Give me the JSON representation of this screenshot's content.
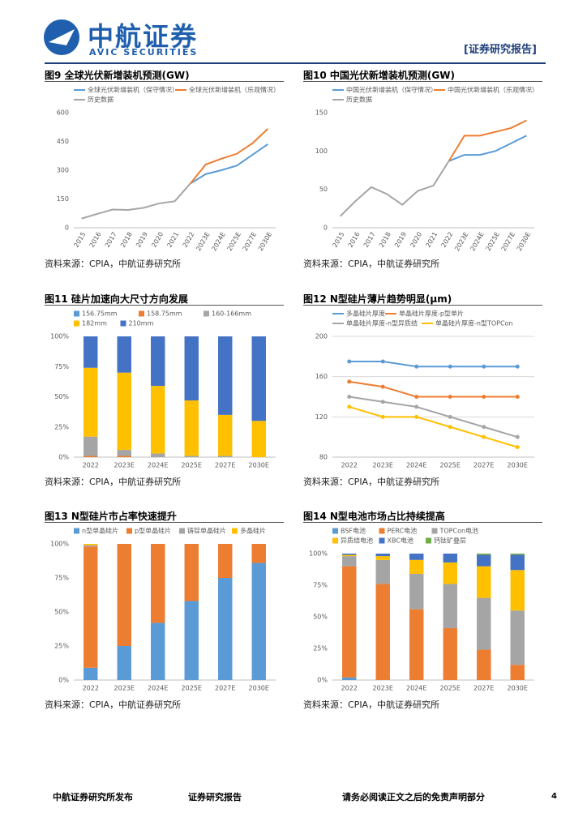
{
  "header": {
    "logo_cn": "中航证券",
    "logo_en": "AVIC SECURITIES",
    "report_type": "[证券研究报告]"
  },
  "chart_data": [
    {
      "type": "line",
      "figure_title": "图9 全球光伏新增装机预测(GW)",
      "categories": [
        "2015",
        "2016",
        "2017",
        "2018",
        "2019",
        "2020",
        "2021",
        "2022",
        "2023E",
        "2024E",
        "2025E",
        "2027E",
        "2030E"
      ],
      "series": [
        {
          "name": "全球光伏新增装机（保守情况）",
          "color": "#5b9bd5",
          "values": [
            null,
            null,
            null,
            null,
            null,
            null,
            null,
            230,
            280,
            300,
            324,
            380,
            436
          ]
        },
        {
          "name": "全球光伏新增装机（乐观情况）",
          "color": "#ed7d31",
          "values": [
            null,
            null,
            null,
            null,
            null,
            null,
            null,
            230,
            330,
            360,
            386,
            440,
            516
          ]
        },
        {
          "name": "历史数据",
          "color": "#a5a5a5",
          "values": [
            48,
            72,
            95,
            93,
            104,
            127,
            138,
            230,
            null,
            null,
            null,
            null,
            null
          ]
        }
      ],
      "ylim": [
        0,
        600
      ],
      "yticks": [
        0,
        150,
        300,
        450,
        600
      ],
      "grid": false,
      "markers": false,
      "source": "资料来源：CPIA，中航证券研究所"
    },
    {
      "type": "line",
      "figure_title": "图10 中国光伏新增装机预测(GW)",
      "categories": [
        "2015",
        "2016",
        "2017",
        "2018",
        "2019",
        "2020",
        "2021",
        "2022",
        "2023E",
        "2024E",
        "2025E",
        "2027E",
        "2030E"
      ],
      "series": [
        {
          "name": "中国光伏新增装机（保守情况）",
          "color": "#5b9bd5",
          "values": [
            null,
            null,
            null,
            null,
            null,
            null,
            null,
            87,
            95,
            95,
            100,
            110,
            120
          ]
        },
        {
          "name": "中国光伏新增装机（乐观情况）",
          "color": "#ed7d31",
          "values": [
            null,
            null,
            null,
            null,
            null,
            null,
            null,
            87,
            120,
            120,
            125,
            130,
            140
          ]
        },
        {
          "name": "历史数据",
          "color": "#a5a5a5",
          "values": [
            15,
            35,
            53,
            44,
            30,
            48,
            55,
            87,
            null,
            null,
            null,
            null,
            null
          ]
        }
      ],
      "ylim": [
        0,
        150
      ],
      "yticks": [
        0,
        50,
        100,
        150
      ],
      "grid": false,
      "markers": false,
      "source": "资料来源：CPIA，中航证券研究所"
    },
    {
      "type": "bar",
      "stacked": true,
      "figure_title": "图11 硅片加速向大尺寸方向发展",
      "categories": [
        "2022",
        "2023E",
        "2024E",
        "2025E",
        "2027E",
        "2030E"
      ],
      "series": [
        {
          "name": "156.75mm",
          "color": "#5b9bd5",
          "values": [
            0,
            0,
            0,
            0,
            0,
            0
          ]
        },
        {
          "name": "158.75mm",
          "color": "#ed7d31",
          "values": [
            1,
            1,
            0,
            0,
            0,
            0
          ]
        },
        {
          "name": "160-166mm",
          "color": "#a5a5a5",
          "values": [
            16,
            5,
            3,
            1,
            1,
            0
          ]
        },
        {
          "name": "182mm",
          "color": "#ffc000",
          "values": [
            57,
            64,
            56,
            46,
            34,
            30
          ]
        },
        {
          "name": "210mm",
          "color": "#4472c4",
          "values": [
            26,
            30,
            41,
            53,
            65,
            70
          ]
        }
      ],
      "ylim": [
        0,
        100
      ],
      "yticks": [
        {
          "value": 0,
          "label": "0%"
        },
        {
          "value": 25,
          "label": "25%"
        },
        {
          "value": 50,
          "label": "50%"
        },
        {
          "value": 75,
          "label": "75%"
        },
        {
          "value": 100,
          "label": "100%"
        }
      ],
      "grid": false,
      "source": "资料来源：CPIA，中航证券研究所"
    },
    {
      "type": "line",
      "figure_title": "图12 N型硅片薄片趋势明显(μm)",
      "categories": [
        "2022",
        "2023E",
        "2024E",
        "2025E",
        "2027E",
        "2030E"
      ],
      "series": [
        {
          "name": "多晶硅片厚度",
          "color": "#5b9bd5",
          "values": [
            175,
            175,
            170,
            170,
            170,
            170
          ]
        },
        {
          "name": "单晶硅片厚度-p型单片",
          "color": "#ed7d31",
          "values": [
            155,
            150,
            140,
            140,
            140,
            140
          ]
        },
        {
          "name": "单晶硅片厚度-n型异质结",
          "color": "#a5a5a5",
          "values": [
            140,
            135,
            130,
            120,
            110,
            100
          ]
        },
        {
          "name": "单晶硅片厚度-n型TOPCon",
          "color": "#ffc000",
          "values": [
            130,
            120,
            120,
            110,
            100,
            90
          ]
        }
      ],
      "ylim": [
        80,
        200
      ],
      "yticks": [
        80,
        120,
        160,
        200
      ],
      "grid": true,
      "markers": true,
      "source": "资料来源：CPIA，中航证券研究所"
    },
    {
      "type": "bar",
      "stacked": true,
      "figure_title": "图13 N型硅片市占率快速提升",
      "categories": [
        "2022",
        "2023E",
        "2024E",
        "2025E",
        "2027E",
        "2030E"
      ],
      "series": [
        {
          "name": "n型单晶硅片",
          "color": "#5b9bd5",
          "values": [
            9,
            25,
            42,
            58,
            75,
            86
          ]
        },
        {
          "name": "p型单晶硅片",
          "color": "#ed7d31",
          "values": [
            89,
            75,
            58,
            42,
            25,
            14
          ]
        },
        {
          "name": "铸锭单晶硅片",
          "color": "#a5a5a5",
          "values": [
            1,
            0,
            0,
            0,
            0,
            0
          ]
        },
        {
          "name": "多晶硅片",
          "color": "#ffc000",
          "values": [
            1,
            0,
            0,
            0,
            0,
            0
          ]
        }
      ],
      "ylim": [
        0,
        100
      ],
      "yticks": [
        {
          "value": 0,
          "label": "0%"
        },
        {
          "value": 25,
          "label": "25%"
        },
        {
          "value": 50,
          "label": "50%"
        },
        {
          "value": 75,
          "label": "75%"
        },
        {
          "value": 100,
          "label": "100%"
        }
      ],
      "grid": false,
      "source": "资料来源：CPIA，中航证券研究所"
    },
    {
      "type": "bar",
      "stacked": true,
      "figure_title": "图14 N型电池市场占比持续提高",
      "categories": [
        "2022",
        "2023E",
        "2024E",
        "2025E",
        "2027E",
        "2030E"
      ],
      "series": [
        {
          "name": "BSF电池",
          "color": "#5b9bd5",
          "values": [
            2,
            0,
            0,
            0,
            0,
            0
          ]
        },
        {
          "name": "PERC电池",
          "color": "#ed7d31",
          "values": [
            88,
            76,
            56,
            41,
            24,
            12
          ]
        },
        {
          "name": "TOPCon电池",
          "color": "#a5a5a5",
          "values": [
            8,
            19,
            28,
            35,
            41,
            43
          ]
        },
        {
          "name": "异质结电池",
          "color": "#ffc000",
          "values": [
            1,
            3,
            11,
            17,
            25,
            32
          ]
        },
        {
          "name": "XBC电池",
          "color": "#4472c4",
          "values": [
            1,
            2,
            5,
            7,
            9,
            12
          ]
        },
        {
          "name": "钙钛矿叠层",
          "color": "#70ad47",
          "values": [
            0,
            0,
            0,
            0,
            1,
            1
          ]
        }
      ],
      "ylim": [
        0,
        100
      ],
      "yticks": [
        {
          "value": 0,
          "label": "0%"
        },
        {
          "value": 25,
          "label": "25%"
        },
        {
          "value": 50,
          "label": "50%"
        },
        {
          "value": 75,
          "label": "75%"
        },
        {
          "value": 100,
          "label": "100%"
        }
      ],
      "grid": false,
      "source": "资料来源：CPIA，中航证券研究所"
    }
  ],
  "footer": {
    "publisher": "中航证券研究所发布",
    "report_type": "证券研究报告",
    "disclaimer": "请务必阅读正文之后的免责声明部分",
    "page": "4"
  }
}
